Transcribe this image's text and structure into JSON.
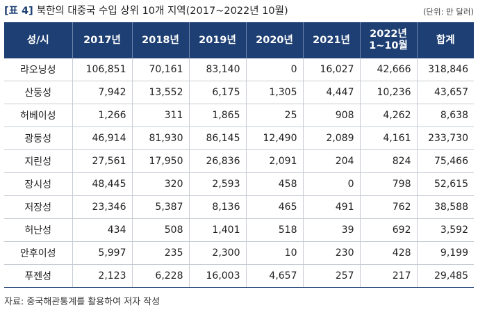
{
  "title_tag": "[표 4]",
  "title": "북한의 대중국 수입 상위 10개 지역(2017~2022년 10월)",
  "unit": "(단위: 만 달러)",
  "headers": [
    "성/시",
    "2017년",
    "2018년",
    "2019년",
    "2020년",
    "2021년",
    "2022년\n1~10월",
    "합계"
  ],
  "rows": [
    [
      "랴오닝성",
      "106,851",
      "70,161",
      "83,140",
      "0",
      "16,027",
      "42,666",
      "318,846"
    ],
    [
      "산둥성",
      "7,942",
      "13,552",
      "6,175",
      "1,305",
      "4,447",
      "10,236",
      "43,657"
    ],
    [
      "허베이성",
      "1,266",
      "311",
      "1,865",
      "25",
      "908",
      "4,262",
      "8,638"
    ],
    [
      "광둥성",
      "46,914",
      "81,930",
      "86,145",
      "12,490",
      "2,089",
      "4,161",
      "233,730"
    ],
    [
      "지린성",
      "27,561",
      "17,950",
      "26,836",
      "2,091",
      "204",
      "824",
      "75,466"
    ],
    [
      "장시성",
      "48,445",
      "320",
      "2,593",
      "458",
      "0",
      "798",
      "52,615"
    ],
    [
      "저장성",
      "23,346",
      "5,387",
      "8,136",
      "465",
      "491",
      "762",
      "38,588"
    ],
    [
      "허난성",
      "434",
      "508",
      "1,401",
      "518",
      "39",
      "692",
      "3,592"
    ],
    [
      "안후이성",
      "5,997",
      "235",
      "2,300",
      "10",
      "230",
      "428",
      "9,199"
    ],
    [
      "푸젠성",
      "2,123",
      "6,228",
      "16,003",
      "4,657",
      "257",
      "217",
      "29,485"
    ]
  ],
  "source": "자료: 중국해관통계를 활용하여 저자 작성"
}
